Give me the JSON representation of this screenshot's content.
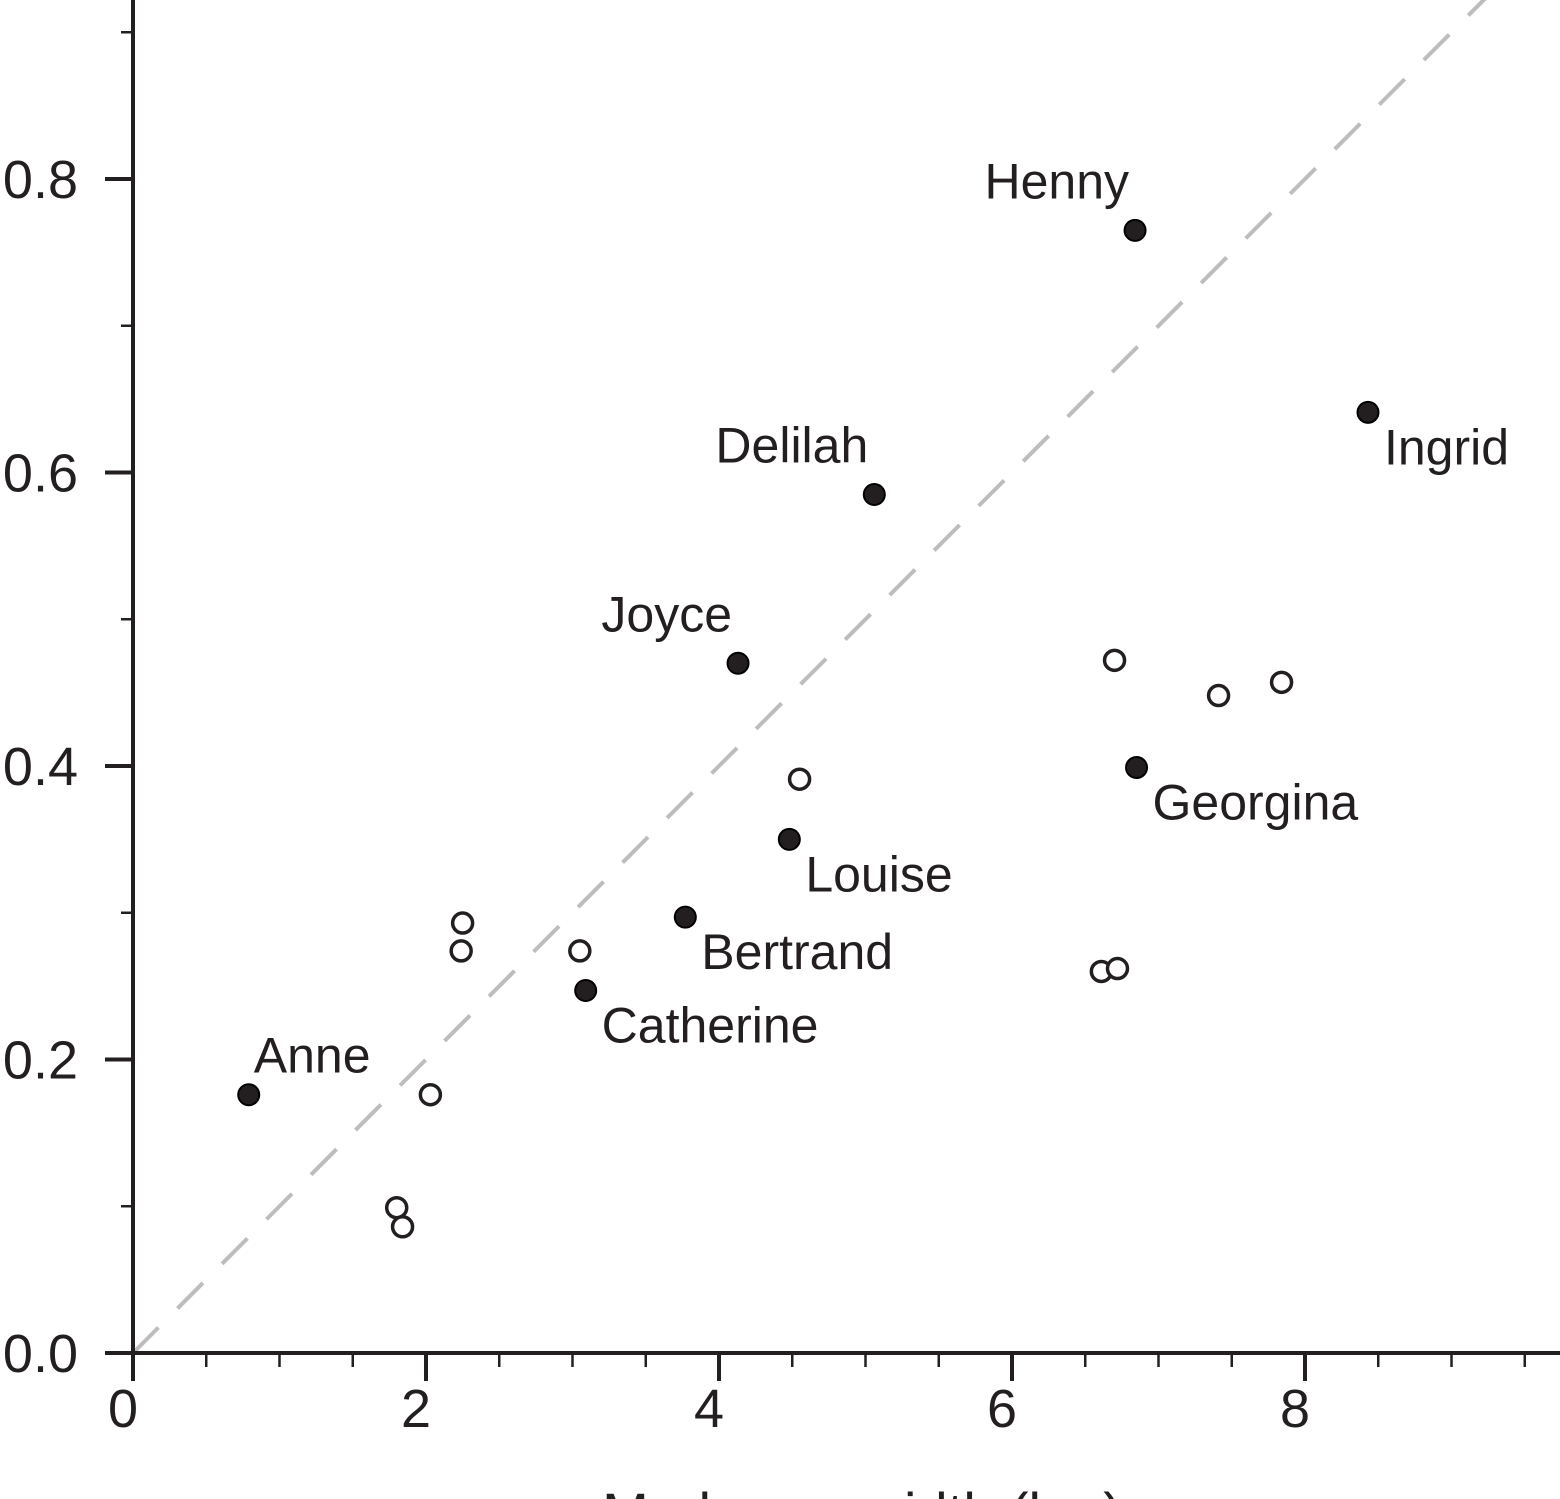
{
  "chart_data": {
    "type": "scatter",
    "title": "",
    "xlabel": "Mud cone width (km)",
    "ylabel": "",
    "xlim": [
      0,
      9.73
    ],
    "ylim": [
      0,
      0.92
    ],
    "x_ticks": [
      "0",
      "2",
      "4",
      "6",
      "8"
    ],
    "y_ticks": [
      "0.0",
      "0.2",
      "0.4",
      "0.6",
      "0.8"
    ],
    "grid": false,
    "reference_line": {
      "style": "dashed",
      "color": "#bdbdbd",
      "slope": 0.1,
      "intercept": 0
    },
    "series": [
      {
        "marker": "filled-circle",
        "color": "#231f20",
        "points": [
          {
            "x": 0.79,
            "y": 0.176,
            "label": "Anne",
            "label_position": "above-right"
          },
          {
            "x": 3.09,
            "y": 0.247,
            "label": "Catherine",
            "label_position": "below-right"
          },
          {
            "x": 3.77,
            "y": 0.297,
            "label": "Bertrand",
            "label_position": "below-right"
          },
          {
            "x": 4.48,
            "y": 0.35,
            "label": "Louise",
            "label_position": "below-right"
          },
          {
            "x": 4.13,
            "y": 0.47,
            "label": "Joyce",
            "label_position": "above-left"
          },
          {
            "x": 5.06,
            "y": 0.585,
            "label": "Delilah",
            "label_position": "above-left"
          },
          {
            "x": 6.84,
            "y": 0.765,
            "label": "Henny",
            "label_position": "above-left"
          },
          {
            "x": 8.43,
            "y": 0.641,
            "label": "Ingrid",
            "label_position": "below-right"
          },
          {
            "x": 6.85,
            "y": 0.399,
            "label": "Georgina",
            "label_position": "below-right"
          }
        ]
      },
      {
        "marker": "open-circle",
        "color": "#231f20",
        "points": [
          {
            "x": 1.8,
            "y": 0.099
          },
          {
            "x": 1.84,
            "y": 0.086
          },
          {
            "x": 2.03,
            "y": 0.176
          },
          {
            "x": 2.24,
            "y": 0.274
          },
          {
            "x": 2.25,
            "y": 0.293
          },
          {
            "x": 3.05,
            "y": 0.274
          },
          {
            "x": 4.55,
            "y": 0.391
          },
          {
            "x": 6.61,
            "y": 0.26
          },
          {
            "x": 6.72,
            "y": 0.262
          },
          {
            "x": 6.7,
            "y": 0.472
          },
          {
            "x": 7.41,
            "y": 0.448
          },
          {
            "x": 7.84,
            "y": 0.457
          }
        ]
      }
    ]
  }
}
